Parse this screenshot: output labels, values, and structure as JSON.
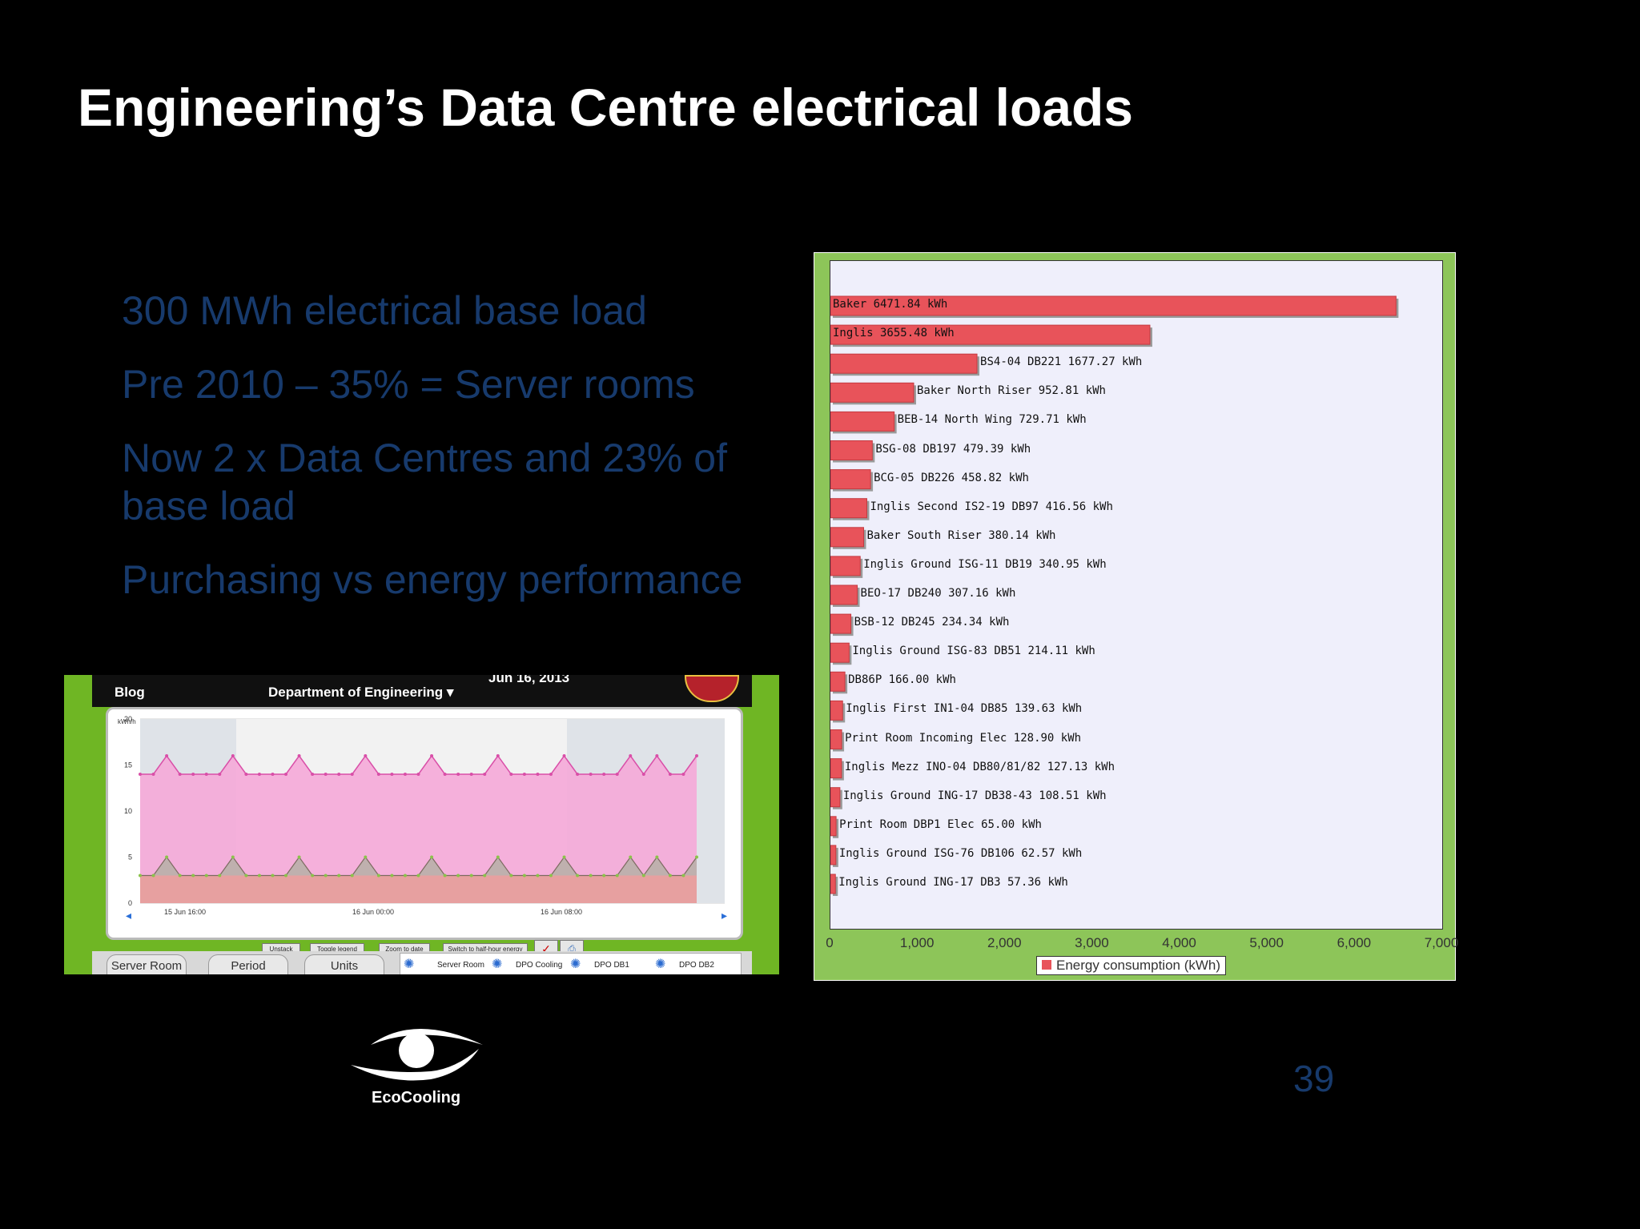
{
  "slide": {
    "title": "Engineering’s Data Centre electrical loads",
    "bullets": [
      "300 MWh electrical base load",
      "Pre 2010 – 35% = Server rooms",
      "Now 2 x Data Centres and 23% of base load",
      "Purchasing vs energy performance"
    ],
    "slide_number": "39",
    "logo_text": "EcoCooling"
  },
  "dashboard": {
    "blog_label": "Blog",
    "department": "Department of Engineering",
    "date": "Jun 16, 2013",
    "y_unit": "kWh/h",
    "y_ticks": [
      "20",
      "15",
      "10",
      "5",
      "0"
    ],
    "x_ticks": [
      "15 Jun 16:00",
      "16 Jun 00:00",
      "16 Jun 08:00"
    ],
    "buttons": [
      "Unstack",
      "Toggle legend",
      "Zoom to date",
      "Switch to half-hour energy"
    ],
    "tabs": [
      "Server Room",
      "Period",
      "Units"
    ],
    "legend_items": [
      "Server Room",
      "DPO Cooling",
      "DPO DB1",
      "DPO DB2"
    ],
    "colors": {
      "area_pink": "#f5a8d8",
      "area_grey": "#b9b0a8",
      "area_red": "#e7a0a0"
    },
    "chart_data": {
      "type": "area",
      "ylim": [
        0,
        20
      ],
      "series": [
        {
          "values": [
            14,
            14,
            16,
            14,
            14,
            14,
            14,
            16,
            14,
            14,
            14,
            14,
            16,
            14,
            14,
            14,
            14,
            16,
            14,
            14,
            14,
            14,
            16,
            14,
            14,
            14,
            14,
            16,
            14,
            14,
            14,
            14,
            16,
            14,
            14,
            14,
            14,
            16,
            14,
            16,
            14,
            14,
            16
          ]
        },
        {
          "values": [
            3,
            3,
            5,
            3,
            3,
            3,
            3,
            5,
            3,
            3,
            3,
            3,
            5,
            3,
            3,
            3,
            3,
            5,
            3,
            3,
            3,
            3,
            5,
            3,
            3,
            3,
            3,
            5,
            3,
            3,
            3,
            3,
            5,
            3,
            3,
            3,
            3,
            5,
            3,
            5,
            3,
            3,
            5
          ]
        }
      ]
    }
  },
  "chart_data": {
    "type": "bar",
    "orientation": "horizontal",
    "categories": [
      "Baker",
      "Inglis",
      "BS4-04 DB221",
      "Baker North Riser",
      "BEB-14 North Wing",
      "BSG-08 DB197",
      "BCG-05 DB226",
      "Inglis Second IS2-19 DB97",
      "Baker South Riser",
      "Inglis Ground ISG-11 DB19",
      "BEO-17 DB240",
      "BSB-12 DB245",
      "Inglis Ground ISG-83 DB51",
      "DB86P",
      "Inglis First IN1-04 DB85",
      "Print Room Incoming Elec",
      "Inglis Mezz INO-04 DB80/81/82",
      "Inglis Ground ING-17 DB38-43",
      "Print Room DBP1 Elec",
      "Inglis Ground ISG-76 DB106",
      "Inglis Ground ING-17 DB3"
    ],
    "values": [
      6471.84,
      3655.48,
      1677.27,
      952.81,
      729.71,
      479.39,
      458.82,
      416.56,
      380.14,
      340.95,
      307.16,
      234.34,
      214.11,
      166.0,
      139.63,
      128.9,
      127.13,
      108.51,
      65.0,
      62.57,
      57.36
    ],
    "labels": [
      "Baker 6471.84 kWh",
      "Inglis 3655.48 kWh",
      "BS4-04 DB221 1677.27 kWh",
      "Baker North Riser 952.81 kWh",
      "BEB-14 North Wing 729.71 kWh",
      "BSG-08 DB197 479.39 kWh",
      "BCG-05 DB226 458.82 kWh",
      "Inglis Second IS2-19 DB97 416.56 kWh",
      "Baker South Riser 380.14 kWh",
      "Inglis Ground ISG-11 DB19 340.95 kWh",
      "BEO-17 DB240 307.16 kWh",
      "BSB-12 DB245 234.34 kWh",
      "Inglis Ground ISG-83 DB51 214.11 kWh",
      "DB86P 166.00 kWh",
      "Inglis First IN1-04 DB85 139.63 kWh",
      "Print Room Incoming Elec 128.90 kWh",
      "Inglis Mezz INO-04 DB80/81/82 127.13 kWh",
      "Inglis Ground ING-17 DB38-43 108.51 kWh",
      "Print Room DBP1 Elec 65.00 kWh",
      "Inglis Ground ISG-76 DB106 62.57 kWh",
      "Inglis Ground ING-17 DB3 57.36 kWh"
    ],
    "xlim": [
      0,
      7000
    ],
    "x_ticks": [
      "0",
      "1,000",
      "2,000",
      "3,000",
      "4,000",
      "5,000",
      "6,000",
      "7,000"
    ],
    "legend": "Energy consumption (kWh)",
    "legend_position": "bottom",
    "bar_color": "#e8535a"
  }
}
